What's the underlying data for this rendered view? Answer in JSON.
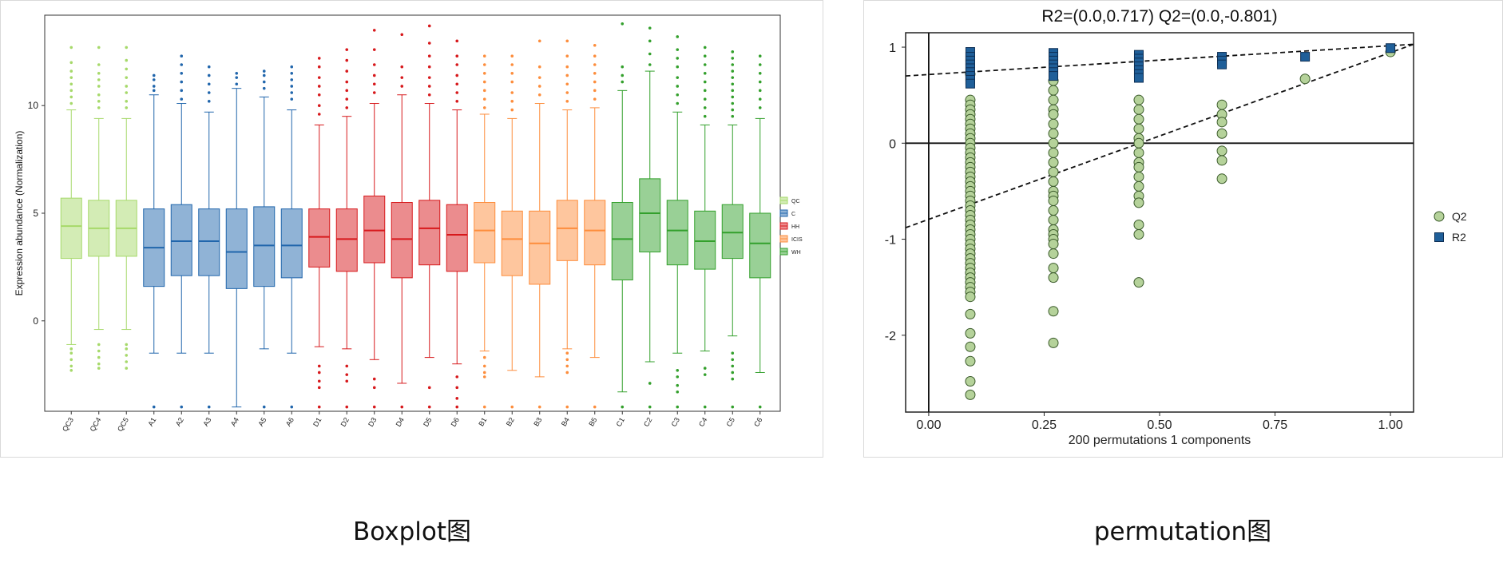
{
  "captions": {
    "left": "Boxplot图",
    "right": "permutation图"
  },
  "chart_data": [
    {
      "type": "boxplot",
      "title": "",
      "xlabel": "",
      "ylabel": "Expression abundance (Normalization)",
      "ylim": [
        -4.2,
        14.2
      ],
      "yticks": [
        0,
        5,
        10
      ],
      "grid": false,
      "legend_position": "right",
      "groups": [
        {
          "name": "QC",
          "color": "#a6d96a"
        },
        {
          "name": "C",
          "color": "#2166ac"
        },
        {
          "name": "HH",
          "color": "#d7191c"
        },
        {
          "name": "ICIS",
          "color": "#fd8d3c"
        },
        {
          "name": "WH",
          "color": "#33a02c"
        }
      ],
      "categories": [
        "QC3",
        "QC4",
        "QC5",
        "A1",
        "A2",
        "A3",
        "A4",
        "A5",
        "A6",
        "D1",
        "D2",
        "D3",
        "D4",
        "D5",
        "D6",
        "B1",
        "B2",
        "B3",
        "B4",
        "B5",
        "C1",
        "C2",
        "C3",
        "C4",
        "C5",
        "C6"
      ],
      "boxes": [
        {
          "label": "QC3",
          "group": "QC",
          "min": -1.1,
          "q1": 2.9,
          "median": 4.4,
          "q3": 5.7,
          "max": 9.8,
          "outliers": [
            -1.3,
            -1.5,
            -1.8,
            -2.1,
            -2.3,
            10.1,
            10.4,
            10.7,
            11.0,
            11.3,
            11.6,
            12.0,
            12.7
          ]
        },
        {
          "label": "QC4",
          "group": "QC",
          "min": -0.4,
          "q1": 3.0,
          "median": 4.3,
          "q3": 5.6,
          "max": 9.4,
          "outliers": [
            -1.1,
            -1.4,
            -1.7,
            -2.0,
            -2.2,
            9.9,
            10.2,
            10.5,
            10.9,
            11.2,
            11.5,
            11.9,
            12.7
          ]
        },
        {
          "label": "QC5",
          "group": "QC",
          "min": -0.4,
          "q1": 3.0,
          "median": 4.3,
          "q3": 5.6,
          "max": 9.4,
          "outliers": [
            -1.1,
            -1.3,
            -1.6,
            -1.9,
            -2.2,
            9.9,
            10.2,
            10.6,
            10.9,
            11.3,
            11.7,
            12.1,
            12.7
          ]
        },
        {
          "label": "A1",
          "group": "C",
          "min": -1.5,
          "q1": 1.6,
          "median": 3.4,
          "q3": 5.2,
          "max": 10.5,
          "outliers": [
            -4.0,
            10.7,
            10.9,
            11.2,
            11.4
          ]
        },
        {
          "label": "A2",
          "group": "C",
          "min": -1.5,
          "q1": 2.1,
          "median": 3.7,
          "q3": 5.4,
          "max": 10.1,
          "outliers": [
            -4.0,
            10.3,
            10.7,
            11.1,
            11.5,
            11.9,
            12.3
          ]
        },
        {
          "label": "A3",
          "group": "C",
          "min": -1.5,
          "q1": 2.1,
          "median": 3.7,
          "q3": 5.2,
          "max": 9.7,
          "outliers": [
            -4.0,
            10.2,
            10.6,
            11.0,
            11.4,
            11.8
          ]
        },
        {
          "label": "A4",
          "group": "C",
          "min": -4.0,
          "q1": 1.5,
          "median": 3.2,
          "q3": 5.2,
          "max": 10.8,
          "outliers": [
            11.0,
            11.3,
            11.5
          ]
        },
        {
          "label": "A5",
          "group": "C",
          "min": -1.3,
          "q1": 1.6,
          "median": 3.5,
          "q3": 5.3,
          "max": 10.4,
          "outliers": [
            -4.0,
            10.8,
            11.1,
            11.4,
            11.6
          ]
        },
        {
          "label": "A6",
          "group": "C",
          "min": -1.5,
          "q1": 2.0,
          "median": 3.5,
          "q3": 5.2,
          "max": 9.8,
          "outliers": [
            -4.0,
            10.3,
            10.6,
            10.9,
            11.2,
            11.5,
            11.8
          ]
        },
        {
          "label": "D1",
          "group": "HH",
          "min": -1.2,
          "q1": 2.5,
          "median": 3.9,
          "q3": 5.2,
          "max": 9.1,
          "outliers": [
            -2.1,
            -2.4,
            -2.8,
            -3.1,
            -4.0,
            9.6,
            10.0,
            10.5,
            10.9,
            11.3,
            11.8,
            12.2
          ]
        },
        {
          "label": "D2",
          "group": "HH",
          "min": -1.3,
          "q1": 2.3,
          "median": 3.8,
          "q3": 5.2,
          "max": 9.5,
          "outliers": [
            -2.1,
            -2.5,
            -2.8,
            -4.0,
            9.9,
            10.3,
            10.7,
            11.1,
            11.6,
            12.1,
            12.6
          ]
        },
        {
          "label": "D3",
          "group": "HH",
          "min": -1.8,
          "q1": 2.7,
          "median": 4.2,
          "q3": 5.8,
          "max": 10.1,
          "outliers": [
            -2.7,
            -3.1,
            -4.0,
            10.6,
            11.0,
            11.4,
            11.9,
            12.6,
            13.5
          ]
        },
        {
          "label": "D4",
          "group": "HH",
          "min": -2.9,
          "q1": 2.0,
          "median": 3.8,
          "q3": 5.5,
          "max": 10.5,
          "outliers": [
            -4.0,
            10.9,
            11.3,
            11.8,
            13.3
          ]
        },
        {
          "label": "D5",
          "group": "HH",
          "min": -1.7,
          "q1": 2.6,
          "median": 4.3,
          "q3": 5.6,
          "max": 10.1,
          "outliers": [
            -3.1,
            -4.0,
            10.5,
            10.9,
            11.3,
            11.8,
            12.3,
            12.9,
            13.7
          ]
        },
        {
          "label": "D6",
          "group": "HH",
          "min": -2.0,
          "q1": 2.3,
          "median": 4.0,
          "q3": 5.4,
          "max": 9.8,
          "outliers": [
            -2.6,
            -3.1,
            -3.6,
            -4.0,
            10.2,
            10.6,
            11.0,
            11.4,
            11.9,
            12.3,
            13.0
          ]
        },
        {
          "label": "B1",
          "group": "ICIS",
          "min": -1.4,
          "q1": 2.7,
          "median": 4.2,
          "q3": 5.5,
          "max": 9.6,
          "outliers": [
            -1.7,
            -2.1,
            -2.4,
            -2.6,
            -4.0,
            9.9,
            10.3,
            10.7,
            11.1,
            11.5,
            11.9,
            12.3
          ]
        },
        {
          "label": "B2",
          "group": "ICIS",
          "min": -2.3,
          "q1": 2.1,
          "median": 3.8,
          "q3": 5.1,
          "max": 9.4,
          "outliers": [
            -4.0,
            9.8,
            10.2,
            10.6,
            11.1,
            11.5,
            11.9,
            12.3
          ]
        },
        {
          "label": "B3",
          "group": "ICIS",
          "min": -2.6,
          "q1": 1.7,
          "median": 3.6,
          "q3": 5.1,
          "max": 10.1,
          "outliers": [
            -4.0,
            10.5,
            10.9,
            11.3,
            11.8,
            13.0
          ]
        },
        {
          "label": "B4",
          "group": "ICIS",
          "min": -1.3,
          "q1": 2.8,
          "median": 4.3,
          "q3": 5.6,
          "max": 9.8,
          "outliers": [
            -1.5,
            -1.8,
            -2.1,
            -2.4,
            -4.0,
            10.2,
            10.6,
            11.0,
            11.4,
            11.8,
            12.3,
            13.0
          ]
        },
        {
          "label": "B5",
          "group": "ICIS",
          "min": -1.7,
          "q1": 2.6,
          "median": 4.2,
          "q3": 5.6,
          "max": 9.9,
          "outliers": [
            -4.0,
            10.3,
            10.7,
            11.1,
            11.5,
            11.9,
            12.3,
            12.8
          ]
        },
        {
          "label": "C1",
          "group": "WH",
          "min": -3.3,
          "q1": 1.9,
          "median": 3.8,
          "q3": 5.5,
          "max": 10.7,
          "outliers": [
            -4.0,
            11.1,
            11.4,
            11.8,
            13.8
          ]
        },
        {
          "label": "C2",
          "group": "WH",
          "min": -1.9,
          "q1": 3.2,
          "median": 5.0,
          "q3": 6.6,
          "max": 11.6,
          "outliers": [
            -2.9,
            -4.0,
            11.9,
            12.4,
            13.0,
            13.6
          ]
        },
        {
          "label": "C3",
          "group": "WH",
          "min": -1.5,
          "q1": 2.6,
          "median": 4.2,
          "q3": 5.6,
          "max": 9.7,
          "outliers": [
            -2.3,
            -2.6,
            -3.0,
            -3.3,
            -4.0,
            10.1,
            10.5,
            10.9,
            11.3,
            11.8,
            12.2,
            12.6,
            13.2
          ]
        },
        {
          "label": "C4",
          "group": "WH",
          "min": -1.4,
          "q1": 2.4,
          "median": 3.7,
          "q3": 5.1,
          "max": 9.1,
          "outliers": [
            -2.2,
            -2.5,
            -4.0,
            9.5,
            9.9,
            10.3,
            10.7,
            11.1,
            11.5,
            11.9,
            12.3,
            12.7
          ]
        },
        {
          "label": "C5",
          "group": "WH",
          "min": -0.7,
          "q1": 2.9,
          "median": 4.1,
          "q3": 5.4,
          "max": 9.1,
          "outliers": [
            -1.5,
            -1.8,
            -2.1,
            -2.4,
            -2.7,
            -4.0,
            9.5,
            9.8,
            10.1,
            10.4,
            10.7,
            11.0,
            11.3,
            11.6,
            11.9,
            12.2,
            12.5
          ]
        },
        {
          "label": "C6",
          "group": "WH",
          "min": -2.4,
          "q1": 2.0,
          "median": 3.6,
          "q3": 5.0,
          "max": 9.4,
          "outliers": [
            -4.0,
            9.9,
            10.3,
            10.7,
            11.1,
            11.5,
            11.9,
            12.3
          ]
        }
      ]
    },
    {
      "type": "scatter",
      "title": "R2=(0.0,0.717)   Q2=(0.0,-0.801)",
      "xlabel": "200 permutations 1 components",
      "ylabel": "",
      "xlim": [
        -0.05,
        1.05
      ],
      "ylim": [
        -2.8,
        1.15
      ],
      "xticks": [
        "0.00",
        "0.25",
        "0.50",
        "0.75",
        "1.00"
      ],
      "yticks": [
        "1",
        "0",
        "-1",
        "-2"
      ],
      "grid": false,
      "legend_position": "right",
      "series": [
        {
          "name": "Q2",
          "marker": "circle",
          "color": "#b5d29a",
          "stroke": "#3a5a2a",
          "x_groups": [
            0.09,
            0.27,
            0.455,
            0.635,
            0.815,
            1.0
          ],
          "y_groups": [
            [
              0.72,
              0.45,
              0.4,
              0.35,
              0.3,
              0.25,
              0.2,
              0.15,
              0.1,
              0.05,
              0.0,
              -0.05,
              -0.1,
              -0.15,
              -0.2,
              -0.25,
              -0.3,
              -0.35,
              -0.4,
              -0.45,
              -0.5,
              -0.55,
              -0.6,
              -0.65,
              -0.7,
              -0.75,
              -0.8,
              -0.85,
              -0.9,
              -0.95,
              -1.0,
              -1.05,
              -1.1,
              -1.15,
              -1.2,
              -1.25,
              -1.3,
              -1.35,
              -1.4,
              -1.45,
              -1.5,
              -1.55,
              -1.6,
              -1.78,
              -1.98,
              -2.12,
              -2.27,
              -2.48,
              -2.62
            ],
            [
              0.65,
              0.55,
              0.45,
              0.35,
              0.3,
              0.2,
              0.1,
              0.0,
              -0.1,
              -0.2,
              -0.3,
              -0.4,
              -0.5,
              -0.55,
              -0.6,
              -0.7,
              -0.8,
              -0.9,
              -0.95,
              -1.0,
              -1.05,
              -1.15,
              -1.3,
              -1.4,
              -1.75,
              -2.08
            ],
            [
              0.45,
              0.35,
              0.25,
              0.15,
              0.05,
              0.0,
              -0.1,
              -0.2,
              -0.25,
              -0.35,
              -0.45,
              -0.55,
              -0.62,
              -0.85,
              -0.95,
              -1.45
            ],
            [
              0.4,
              0.3,
              0.22,
              0.1,
              -0.08,
              -0.18,
              -0.37
            ],
            [
              0.67
            ],
            [
              0.95
            ]
          ]
        },
        {
          "name": "R2",
          "marker": "square",
          "color": "#1f5f99",
          "stroke": "#0d2f55",
          "x_groups": [
            0.09,
            0.27,
            0.455,
            0.635,
            0.815,
            1.0
          ],
          "y_groups": [
            [
              0.95,
              0.9,
              0.86,
              0.82,
              0.78,
              0.74,
              0.7,
              0.66,
              0.62
            ],
            [
              0.94,
              0.9,
              0.86,
              0.82,
              0.78,
              0.74,
              0.7
            ],
            [
              0.92,
              0.88,
              0.84,
              0.8,
              0.76,
              0.72,
              0.68
            ],
            [
              0.9,
              0.86,
              0.82
            ],
            [
              0.9
            ],
            [
              0.99
            ]
          ]
        }
      ],
      "reference_lines": [
        {
          "name": "R2 fit",
          "points": [
            [
              -0.05,
              0.7
            ],
            [
              1.05,
              1.03
            ]
          ]
        },
        {
          "name": "Q2 fit",
          "points": [
            [
              -0.05,
              -0.88
            ],
            [
              1.05,
              1.03
            ]
          ]
        }
      ]
    }
  ]
}
